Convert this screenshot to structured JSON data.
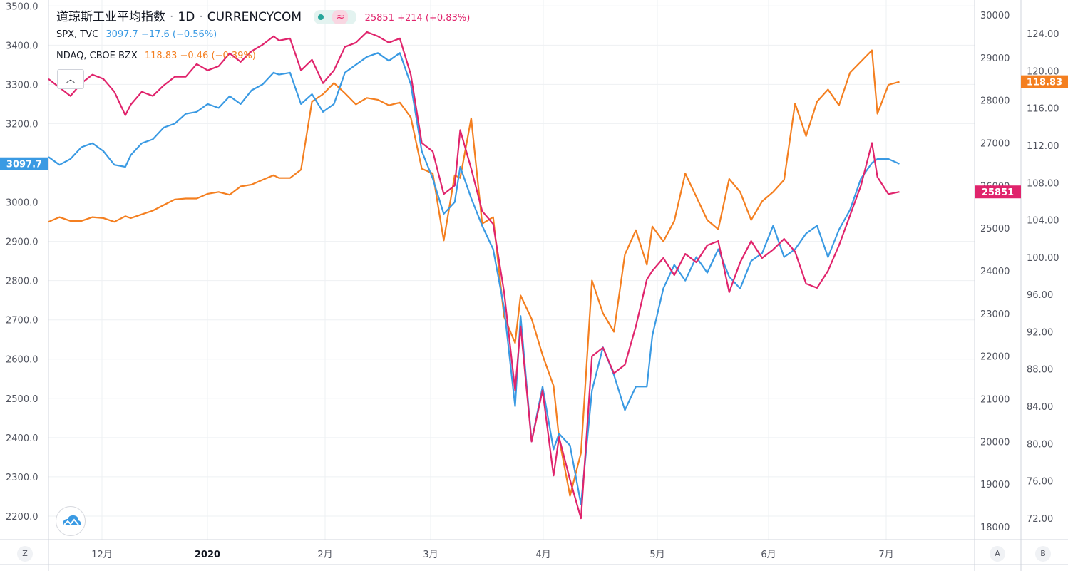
{
  "legend": {
    "main_title": "道琼斯工业平均指数",
    "main_sep1": "·",
    "main_interval": "1D",
    "main_sep2": "·",
    "main_source": "CURRENCYCOM",
    "main_values": "25851 +214 (+0.83%)",
    "spx_name": "SPX, TVC",
    "spx_values": "3097.7 −17.6 (−0.56%)",
    "ndaq_name": "NDAQ, CBOE BZX",
    "ndaq_values": "118.83 −0.46 (−0.39%)",
    "collapse_icon": "chevron-up-icon"
  },
  "corner_buttons": {
    "left": "Z",
    "right_a": "A",
    "right_b": "B"
  },
  "colors": {
    "dji": "#e0246c",
    "spx": "#3a9ae3",
    "ndaq": "#f47f20",
    "grid": "#eef0f3",
    "axis_text": "#50535e"
  },
  "chart_data": {
    "type": "line",
    "left_axis": {
      "ticks": [
        "3500.0",
        "3400.0",
        "3300.0",
        "3200.0",
        "3100.0",
        "3000.0",
        "2900.0",
        "2800.0",
        "2700.0",
        "2600.0",
        "2500.0",
        "2400.0",
        "2300.0",
        "2200.0"
      ],
      "range": [
        2140,
        3515
      ]
    },
    "right_axis_dji": {
      "ticks": [
        "30000",
        "29000",
        "28000",
        "27000",
        "26000",
        "25000",
        "24000",
        "23000",
        "22000",
        "21000",
        "20000",
        "19000",
        "18000"
      ],
      "range": [
        17700,
        30350
      ]
    },
    "right_axis_ndaq": {
      "ticks": [
        "124.00",
        "120.00",
        "116.00",
        "112.00",
        "108.00",
        "104.00",
        "100.00",
        "96.00",
        "92.00",
        "88.00",
        "84.00",
        "72.00",
        "76.00",
        "80.00"
      ],
      "range": [
        69.7,
        127.6
      ]
    },
    "x_ticks": [
      "12月",
      "2020",
      "2月",
      "3月",
      "4月",
      "5月",
      "6月",
      "7月"
    ],
    "series": [
      {
        "name": "道琼斯工业平均指数",
        "axis": "dji",
        "last_label": "25851",
        "x": [
          0,
          4,
          8,
          12,
          16,
          20,
          24,
          28,
          30,
          34,
          38,
          42,
          46,
          50,
          54,
          58,
          62,
          66,
          70,
          74,
          78,
          82,
          84,
          88,
          92,
          96,
          100,
          104,
          108,
          112,
          116,
          120,
          124,
          128,
          132,
          136,
          140,
          144,
          148,
          150,
          154,
          158,
          162,
          166,
          170,
          172,
          176,
          180,
          184,
          186,
          190,
          194,
          198,
          202,
          206,
          210,
          214,
          218,
          220,
          224,
          228,
          232,
          236,
          240,
          244,
          248,
          252,
          256,
          260,
          264,
          268,
          272,
          276,
          280,
          284,
          288,
          292,
          296,
          300,
          302,
          306,
          310
        ],
        "values": [
          28500,
          28300,
          28100,
          28400,
          28600,
          28500,
          28200,
          27650,
          27900,
          28200,
          28100,
          28350,
          28550,
          28550,
          28850,
          28700,
          28800,
          29100,
          28900,
          29150,
          29300,
          29500,
          29400,
          29450,
          28700,
          28950,
          28400,
          28700,
          29250,
          29350,
          29600,
          29500,
          29350,
          29450,
          28600,
          27000,
          26800,
          25800,
          26000,
          27300,
          26400,
          25400,
          25100,
          23500,
          21200,
          22700,
          20000,
          21200,
          19200,
          20100,
          19100,
          18200,
          22000,
          22200,
          21600,
          21800,
          22700,
          23800,
          24000,
          24300,
          23900,
          24400,
          24200,
          24600,
          24700,
          23500,
          24200,
          24700,
          24300,
          24500,
          24750,
          24450,
          23700,
          23600,
          24000,
          24600,
          25300,
          26000,
          27000,
          26200,
          25800,
          25851
        ]
      },
      {
        "name": "SPX, TVC",
        "axis": "left",
        "last_label": "3097.7",
        "x": [
          0,
          4,
          8,
          12,
          16,
          20,
          24,
          28,
          30,
          34,
          38,
          42,
          46,
          50,
          54,
          58,
          62,
          66,
          70,
          74,
          78,
          82,
          84,
          88,
          92,
          96,
          100,
          104,
          108,
          112,
          116,
          120,
          124,
          128,
          132,
          136,
          140,
          144,
          148,
          150,
          154,
          158,
          162,
          166,
          170,
          172,
          176,
          180,
          184,
          186,
          190,
          194,
          198,
          202,
          206,
          210,
          214,
          218,
          220,
          224,
          228,
          232,
          236,
          240,
          244,
          248,
          252,
          256,
          260,
          264,
          268,
          272,
          276,
          280,
          284,
          288,
          292,
          296,
          300,
          302,
          306,
          310
        ],
        "values": [
          3115,
          3095,
          3110,
          3140,
          3150,
          3130,
          3095,
          3090,
          3120,
          3150,
          3160,
          3190,
          3200,
          3225,
          3230,
          3250,
          3240,
          3270,
          3250,
          3285,
          3300,
          3330,
          3325,
          3330,
          3250,
          3275,
          3230,
          3250,
          3330,
          3350,
          3370,
          3380,
          3360,
          3380,
          3300,
          3130,
          3060,
          2970,
          3000,
          3090,
          3010,
          2940,
          2880,
          2730,
          2480,
          2710,
          2390,
          2530,
          2370,
          2410,
          2380,
          2230,
          2520,
          2630,
          2560,
          2470,
          2530,
          2530,
          2660,
          2780,
          2840,
          2800,
          2860,
          2820,
          2880,
          2810,
          2780,
          2850,
          2870,
          2940,
          2860,
          2880,
          2920,
          2940,
          2860,
          2930,
          2980,
          3060,
          3100,
          3110,
          3110,
          3097.7
        ]
      },
      {
        "name": "NDAQ, CBOE BZX",
        "axis": "ndaq",
        "last_label": "118.83",
        "x": [
          0,
          4,
          8,
          12,
          16,
          20,
          24,
          28,
          30,
          34,
          38,
          42,
          46,
          50,
          54,
          58,
          62,
          66,
          70,
          74,
          78,
          82,
          84,
          88,
          92,
          96,
          100,
          104,
          108,
          112,
          116,
          120,
          124,
          128,
          132,
          136,
          140,
          144,
          148,
          150,
          154,
          158,
          162,
          166,
          170,
          172,
          176,
          180,
          184,
          186,
          190,
          194,
          198,
          202,
          206,
          210,
          214,
          218,
          220,
          224,
          228,
          232,
          236,
          240,
          244,
          248,
          252,
          256,
          260,
          264,
          268,
          272,
          276,
          280,
          284,
          288,
          292,
          296,
          300,
          302,
          306,
          310
        ],
        "values": [
          103.8,
          104.3,
          103.9,
          103.9,
          104.3,
          104.2,
          103.8,
          104.4,
          104.2,
          104.6,
          105.0,
          105.6,
          106.2,
          106.3,
          106.3,
          106.8,
          107.0,
          106.7,
          107.6,
          107.8,
          108.3,
          108.8,
          108.5,
          108.5,
          109.4,
          116.7,
          117.5,
          118.7,
          117.6,
          116.4,
          117.1,
          116.9,
          116.3,
          116.6,
          115.0,
          109.5,
          109.0,
          101.8,
          108.8,
          108.5,
          114.9,
          103.6,
          104.3,
          93.6,
          90.8,
          95.9,
          93.4,
          89.5,
          86.2,
          80.6,
          74.4,
          79.0,
          97.5,
          94.0,
          92.0,
          100.3,
          102.9,
          99.2,
          103.3,
          101.7,
          103.9,
          109.0,
          106.5,
          104.0,
          103.0,
          108.4,
          107.0,
          104.0,
          106.0,
          107.0,
          108.3,
          116.5,
          113.0,
          116.7,
          118.0,
          116.3,
          119.8,
          121.0,
          122.2,
          115.4,
          118.5,
          118.83
        ]
      }
    ]
  }
}
